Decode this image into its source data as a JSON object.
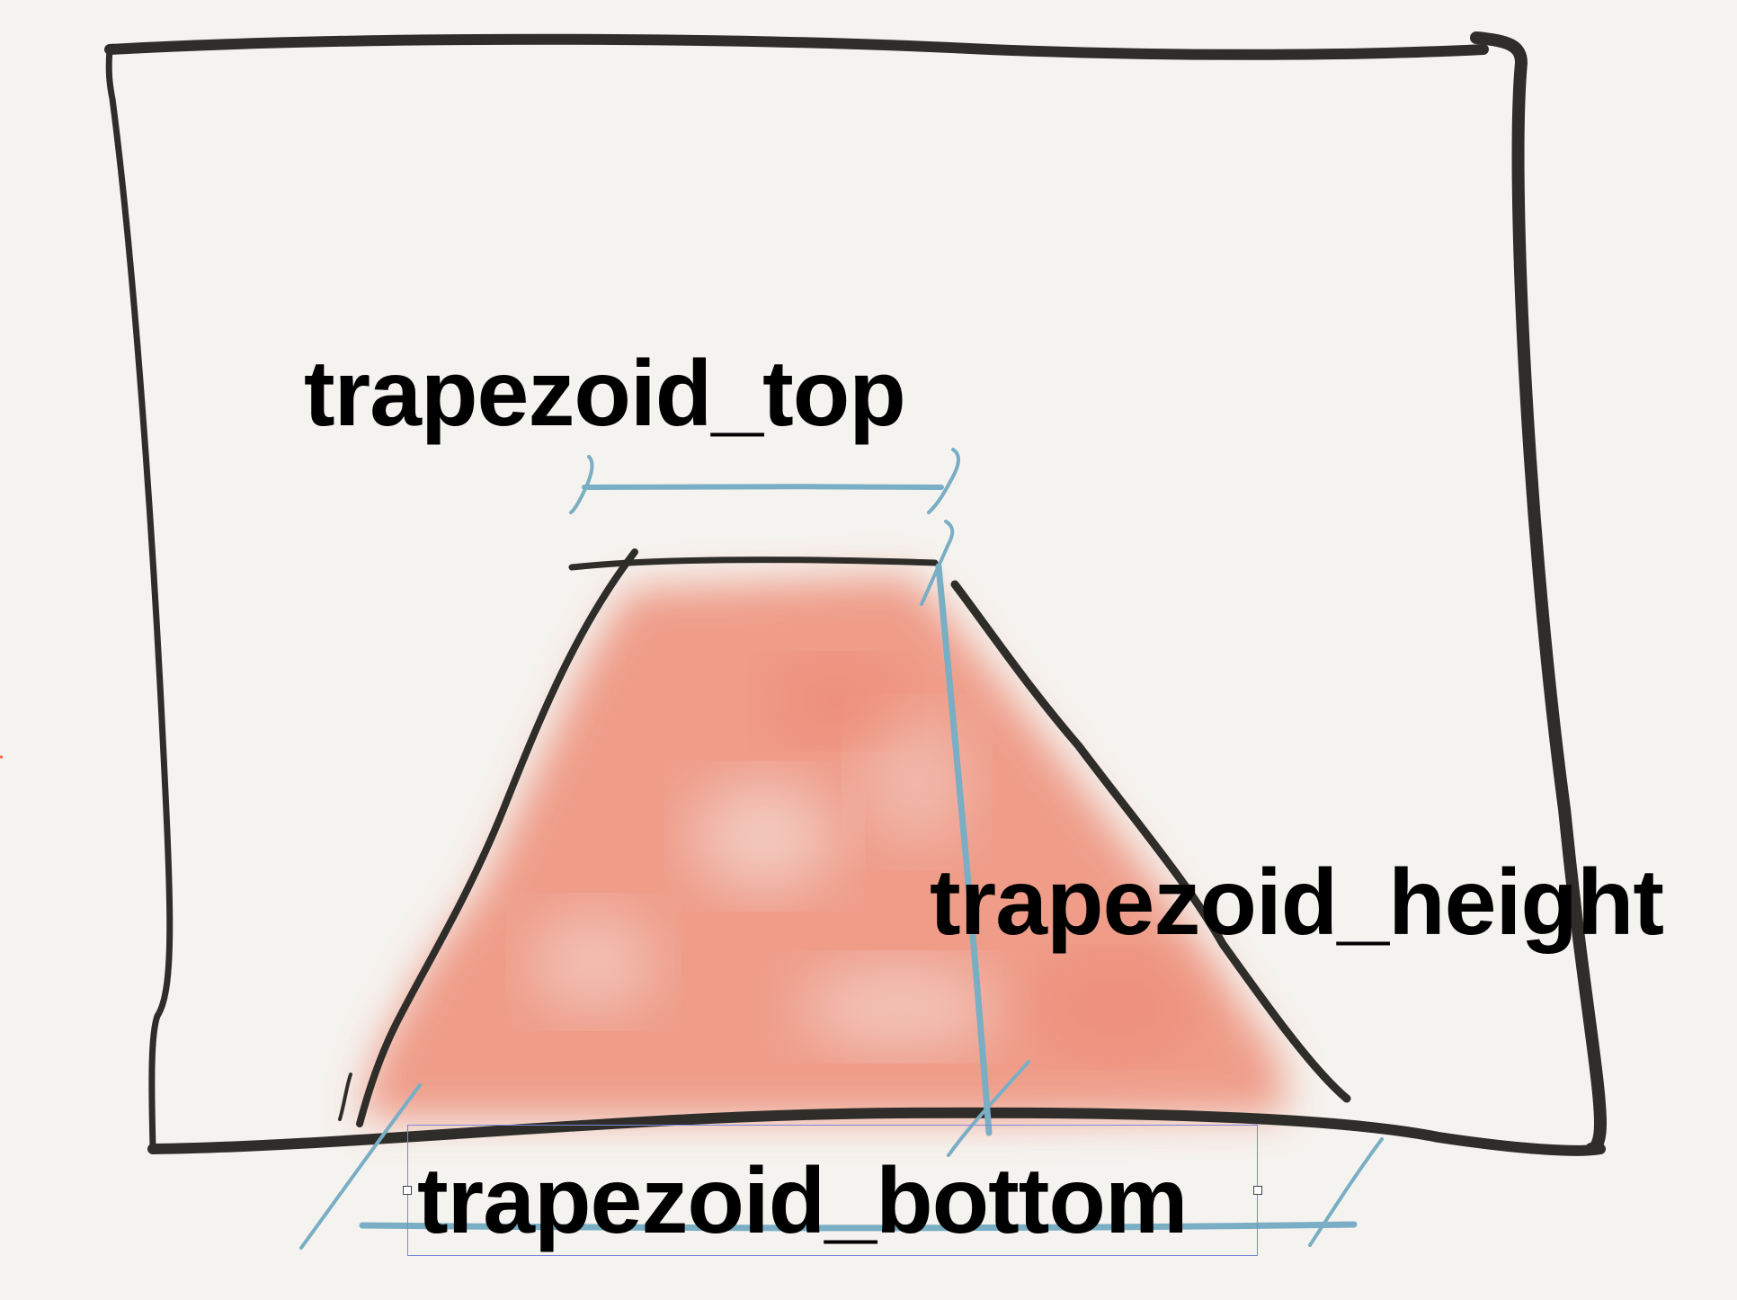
{
  "labels": {
    "top": "trapezoid_top",
    "height": "trapezoid_height",
    "bottom": "trapezoid_bottom"
  },
  "colors": {
    "background": "#f5f3ef",
    "ink": "#2f2d2a",
    "measure": "#7aaec4",
    "fill": "#ee8e78",
    "selection": "#7c86d6"
  }
}
